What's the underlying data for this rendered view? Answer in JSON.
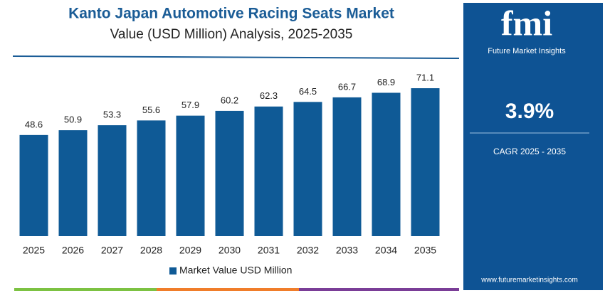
{
  "chart_data": {
    "type": "bar",
    "title": "Kanto Japan Automotive Racing Seats Market",
    "subtitle": "Value (USD Million) Analysis, 2025-2035",
    "categories": [
      "2025",
      "2026",
      "2027",
      "2028",
      "2029",
      "2030",
      "2031",
      "2032",
      "2033",
      "2034",
      "2035"
    ],
    "series": [
      {
        "name": "Market Value USD Million",
        "color": "#0f5a96",
        "values": [
          48.6,
          50.9,
          53.3,
          55.6,
          57.9,
          60.2,
          62.3,
          64.5,
          66.7,
          68.9,
          71.1
        ]
      }
    ],
    "ylim": [
      0,
      80
    ]
  },
  "sidebar": {
    "logo": "fmi",
    "brand": "Future Market Insights",
    "cagr_value": "3.9%",
    "cagr_label": "CAGR 2025 - 2035",
    "website": "www.futuremarketinsights.com"
  }
}
